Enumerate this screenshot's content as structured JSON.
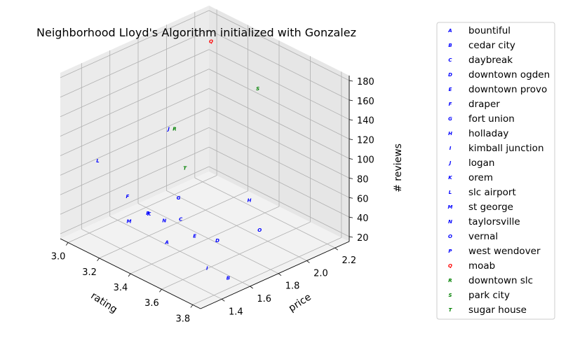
{
  "chart_data": {
    "type": "scatter",
    "projection": "3d",
    "title": "Neighborhood Lloyd's Algorithm initialized with Gonzalez",
    "xlabel": "rating",
    "ylabel": "price",
    "zlabel": "# reviews",
    "xlim": [
      2.95,
      3.85
    ],
    "ylim": [
      1.25,
      2.3
    ],
    "zlim": [
      15,
      185
    ],
    "xticks": [
      "3.0",
      "3.2",
      "3.4",
      "3.6",
      "3.8"
    ],
    "xtick_values": [
      3.0,
      3.2,
      3.4,
      3.6,
      3.8
    ],
    "yticks": [
      "1.4",
      "1.6",
      "1.8",
      "2.0",
      "2.2"
    ],
    "ytick_values": [
      1.4,
      1.6,
      1.8,
      2.0,
      2.2
    ],
    "zticks": [
      "20",
      "40",
      "60",
      "80",
      "100",
      "120",
      "140",
      "160",
      "180"
    ],
    "ztick_values": [
      20,
      40,
      60,
      80,
      100,
      120,
      140,
      160,
      180
    ],
    "grid": true,
    "legend": "right",
    "cluster_colors": [
      "#0000ff",
      "#ff0000",
      "#008000"
    ],
    "points": [
      {
        "marker": "A",
        "name": "bountiful",
        "cluster": 0,
        "rating": 3.48,
        "price": 1.42,
        "reviews": 42
      },
      {
        "marker": "B",
        "name": "cedar city",
        "cluster": 0,
        "rating": 3.8,
        "price": 1.5,
        "reviews": 26
      },
      {
        "marker": "C",
        "name": "daybreak",
        "cluster": 0,
        "rating": 3.45,
        "price": 1.55,
        "reviews": 55
      },
      {
        "marker": "D",
        "name": "downtown ogden",
        "cluster": 0,
        "rating": 3.64,
        "price": 1.6,
        "reviews": 45
      },
      {
        "marker": "E",
        "name": "downtown provo",
        "cluster": 0,
        "rating": 3.54,
        "price": 1.55,
        "reviews": 45
      },
      {
        "marker": "F",
        "name": "draper",
        "cluster": 0,
        "rating": 3.2,
        "price": 1.45,
        "reviews": 65
      },
      {
        "marker": "G",
        "name": "fort union",
        "cluster": 0,
        "rating": 3.3,
        "price": 1.7,
        "reviews": 55
      },
      {
        "marker": "H",
        "name": "holladay",
        "cluster": 0,
        "rating": 3.5,
        "price": 1.98,
        "reviews": 50
      },
      {
        "marker": "I",
        "name": "kimball junction",
        "cluster": 0,
        "rating": 3.71,
        "price": 1.45,
        "reviews": 32
      },
      {
        "marker": "J",
        "name": "logan",
        "cluster": 0,
        "rating": 3.1,
        "price": 1.85,
        "reviews": 100
      },
      {
        "marker": "K",
        "name": "orem",
        "cluster": 0,
        "rating": 3.32,
        "price": 1.47,
        "reviews": 55
      },
      {
        "marker": "L",
        "name": "slc airport",
        "cluster": 0,
        "rating": 3.1,
        "price": 1.35,
        "reviews": 100
      },
      {
        "marker": "M",
        "name": "st george",
        "cluster": 0,
        "rating": 3.3,
        "price": 1.35,
        "reviews": 54
      },
      {
        "marker": "N",
        "name": "taylorsville",
        "cluster": 0,
        "rating": 3.39,
        "price": 1.5,
        "reviews": 52
      },
      {
        "marker": "O",
        "name": "vernal",
        "cluster": 0,
        "rating": 3.62,
        "price": 1.92,
        "reviews": 33
      },
      {
        "marker": "P",
        "name": "west wendover",
        "cluster": 0,
        "rating": 3.33,
        "price": 1.45,
        "reviews": 58
      },
      {
        "marker": "Q",
        "name": "moab",
        "cluster": 1,
        "rating": 3.1,
        "price": 2.15,
        "reviews": 170
      },
      {
        "marker": "R",
        "name": "downtown slc",
        "cluster": 2,
        "rating": 3.12,
        "price": 1.87,
        "reviews": 100
      },
      {
        "marker": "S",
        "name": "park city",
        "cluster": 2,
        "rating": 3.3,
        "price": 2.26,
        "reviews": 130
      },
      {
        "marker": "T",
        "name": "sugar house",
        "cluster": 2,
        "rating": 3.25,
        "price": 1.8,
        "reviews": 75
      }
    ]
  }
}
